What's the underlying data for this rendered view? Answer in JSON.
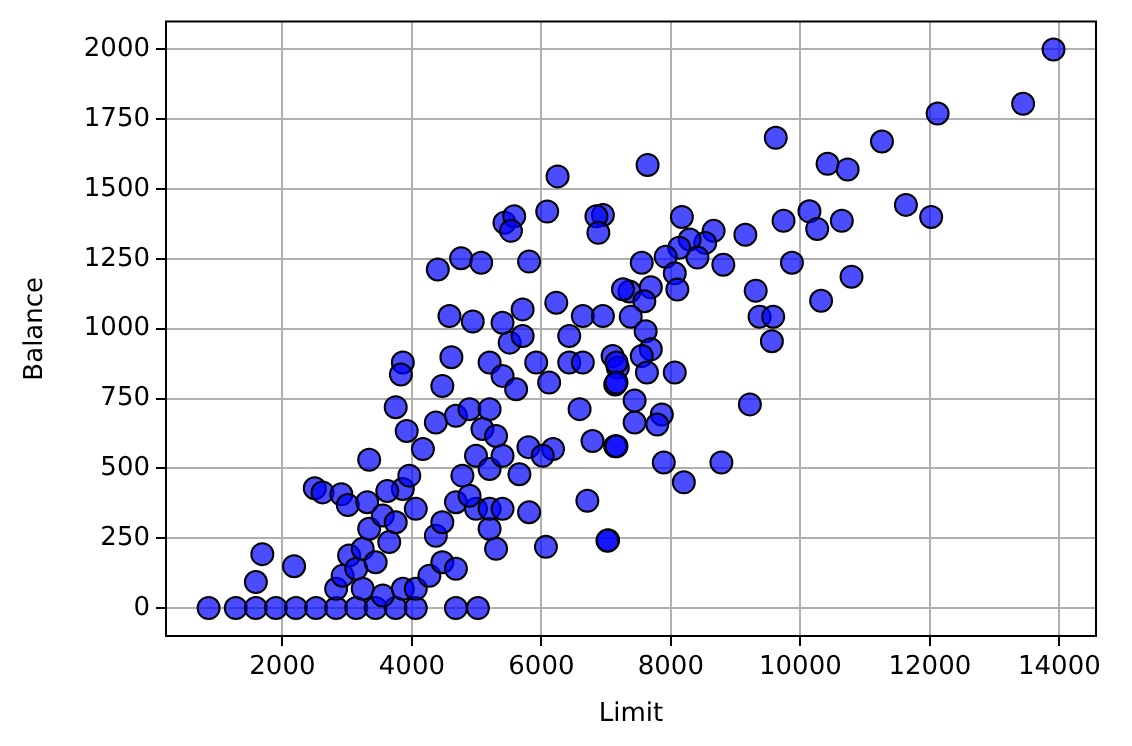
{
  "chart_data": {
    "type": "scatter",
    "xlabel": "Limit",
    "ylabel": "Balance",
    "xlim": [
      202,
      14566
    ],
    "ylim": [
      -100,
      2099
    ],
    "xticks": [
      2000,
      4000,
      6000,
      8000,
      10000,
      12000,
      14000
    ],
    "yticks": [
      0,
      250,
      500,
      750,
      1000,
      1250,
      1500,
      1750,
      2000
    ],
    "grid": true,
    "marker": "circle",
    "series": [
      {
        "color": "#0000ff",
        "x": [
          13910,
          13440,
          12120,
          11260,
          9620,
          10420,
          10730,
          7640,
          11630,
          12020,
          10140,
          10260,
          10640,
          9740,
          9150,
          8170,
          8660,
          8530,
          8290,
          8410,
          8130,
          7920,
          8810,
          9870,
          10790,
          9310,
          10320,
          9370,
          9580,
          9560,
          7550,
          8060,
          8100,
          7360,
          7690,
          7590,
          7380,
          7610,
          7690,
          7550,
          7630,
          8060,
          7100,
          7180,
          7140,
          7440,
          7860,
          7790,
          7440,
          9220,
          7140,
          7890,
          8780,
          8200,
          7030,
          6950,
          860,
          1280,
          1590,
          1900,
          2210,
          2520,
          2830,
          3140,
          3440,
          3750,
          4060,
          4680,
          5020,
          1690,
          1590,
          2180,
          2500,
          2620,
          2910,
          3010,
          3340,
          3310,
          2830,
          2930,
          3030,
          3140,
          3240,
          3340,
          3440,
          3550,
          3650,
          3750,
          3860,
          3960,
          4060,
          3240,
          3550,
          3860,
          4060,
          4270,
          4470,
          4680,
          4370,
          4470,
          4680,
          4990,
          5200,
          5300,
          5810,
          6070,
          3860,
          3830,
          3750,
          3620,
          3920,
          4170,
          4370,
          4470,
          4580,
          4610,
          4400,
          4760,
          5070,
          5810,
          4940,
          4680,
          4890,
          5200,
          5090,
          5300,
          4990,
          4780,
          5200,
          5400,
          4890,
          5200,
          5400,
          5660,
          5800,
          6180,
          6020,
          5200,
          5400,
          5510,
          5610,
          5710,
          5920,
          6120,
          5400,
          5710,
          6230,
          6430,
          6640,
          6430,
          6640,
          6950,
          7260,
          7160,
          7160,
          6590,
          6790,
          7160,
          6710,
          7020,
          6090,
          6250,
          6850,
          6880,
          5430,
          5580,
          5530
        ],
        "values": [
          1999,
          1805,
          1770,
          1670,
          1683,
          1590,
          1570,
          1586,
          1443,
          1400,
          1420,
          1357,
          1386,
          1386,
          1336,
          1400,
          1350,
          1307,
          1319,
          1255,
          1290,
          1257,
          1229,
          1236,
          1186,
          1136,
          1100,
          1043,
          1043,
          955,
          1236,
          1198,
          1140,
          1133,
          1148,
          1098,
          1043,
          991,
          926,
          902,
          843,
          843,
          902,
          860,
          800,
          743,
          693,
          657,
          664,
          729,
          579,
          521,
          521,
          450,
          243,
          1407,
          0,
          0,
          0,
          0,
          0,
          0,
          0,
          0,
          0,
          0,
          0,
          0,
          0,
          193,
          93,
          150,
          429,
          414,
          407,
          369,
          531,
          379,
          69,
          116,
          188,
          141,
          212,
          284,
          164,
          331,
          236,
          307,
          426,
          474,
          355,
          69,
          45,
          69,
          69,
          116,
          164,
          141,
          259,
          307,
          379,
          355,
          284,
          212,
          343,
          219,
          879,
          836,
          719,
          419,
          634,
          569,
          664,
          795,
          1045,
          898,
          1212,
          1252,
          1236,
          1240,
          1026,
          688,
          712,
          712,
          641,
          616,
          545,
          474,
          498,
          545,
          402,
          355,
          355,
          479,
          576,
          569,
          545,
          879,
          831,
          950,
          783,
          974,
          879,
          807,
          1021,
          1069,
          1093,
          974,
          1045,
          879,
          879,
          1045,
          1141,
          879,
          807,
          712,
          598,
          579,
          384,
          241,
          1419,
          1545,
          1402,
          1343,
          1379,
          1402,
          1350
        ]
      }
    ]
  }
}
